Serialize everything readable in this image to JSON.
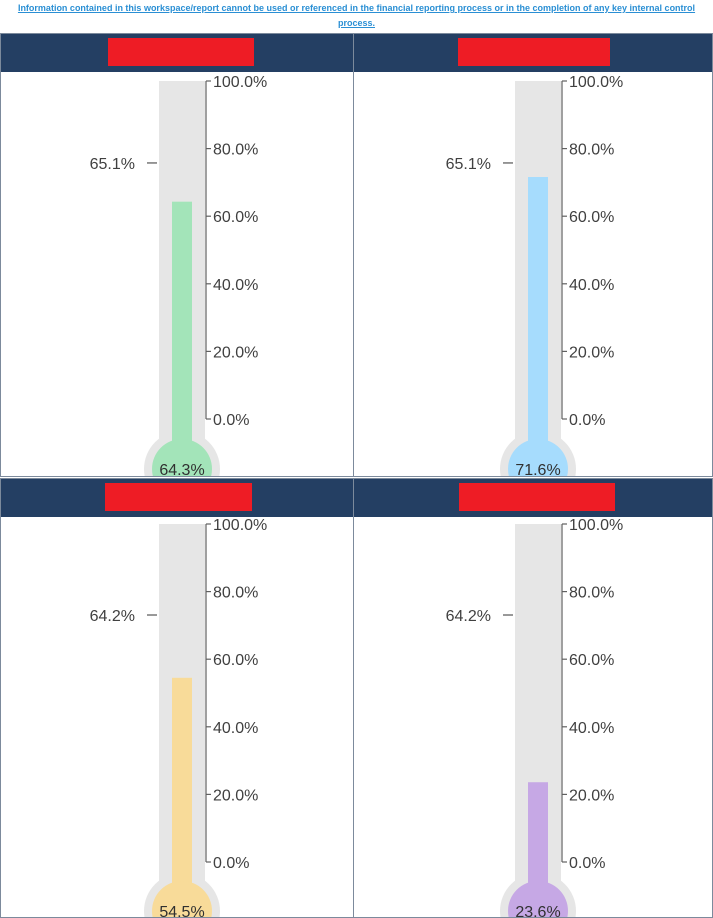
{
  "disclaimer": {
    "line1": "Information contained in this workspace/report cannot be used or referenced in the financial reporting process or in the completion of any key internal control",
    "line2": "process."
  },
  "colors": {
    "header": "#243f63",
    "redaction": "#ee1c25",
    "track": "#e6e6e6"
  },
  "chart_data": [
    {
      "type": "thermometer",
      "value": 64.3,
      "value_label": "64.3%",
      "target": 65.1,
      "target_label": "65.1%",
      "ylim": [
        0,
        100
      ],
      "ticks": [
        "0.0%",
        "20.0%",
        "40.0%",
        "60.0%",
        "80.0%",
        "100.0%"
      ],
      "fill_color": "#a3e4b9"
    },
    {
      "type": "thermometer",
      "value": 71.6,
      "value_label": "71.6%",
      "target": 65.1,
      "target_label": "65.1%",
      "ylim": [
        0,
        100
      ],
      "ticks": [
        "0.0%",
        "20.0%",
        "40.0%",
        "60.0%",
        "80.0%",
        "100.0%"
      ],
      "fill_color": "#a6dcfd"
    },
    {
      "type": "thermometer",
      "value": 54.5,
      "value_label": "54.5%",
      "target": 64.2,
      "target_label": "64.2%",
      "ylim": [
        0,
        100
      ],
      "ticks": [
        "0.0%",
        "20.0%",
        "40.0%",
        "60.0%",
        "80.0%",
        "100.0%"
      ],
      "fill_color": "#f8db99"
    },
    {
      "type": "thermometer",
      "value": 23.6,
      "value_label": "23.6%",
      "target": 64.2,
      "target_label": "64.2%",
      "ylim": [
        0,
        100
      ],
      "ticks": [
        "0.0%",
        "20.0%",
        "40.0%",
        "60.0%",
        "80.0%",
        "100.0%"
      ],
      "fill_color": "#c6a8e5"
    }
  ]
}
